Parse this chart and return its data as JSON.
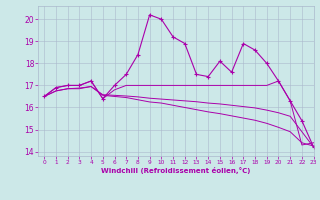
{
  "x": [
    0,
    1,
    2,
    3,
    4,
    5,
    6,
    7,
    8,
    9,
    10,
    11,
    12,
    13,
    14,
    15,
    16,
    17,
    18,
    19,
    20,
    21,
    22,
    23
  ],
  "main_y": [
    16.5,
    16.9,
    17.0,
    17.0,
    17.2,
    16.4,
    17.0,
    17.5,
    18.4,
    20.2,
    20.0,
    19.2,
    18.9,
    17.5,
    17.4,
    18.1,
    17.6,
    18.9,
    18.6,
    18.0,
    17.2,
    16.3,
    15.4,
    14.2
  ],
  "line2_y": [
    16.5,
    16.9,
    17.0,
    17.0,
    17.2,
    16.4,
    16.8,
    17.0,
    17.0,
    17.0,
    17.0,
    17.0,
    17.0,
    17.0,
    17.0,
    17.0,
    17.0,
    17.0,
    17.0,
    17.0,
    17.2,
    16.3,
    14.3,
    14.4
  ],
  "line3_y": [
    16.5,
    16.75,
    16.85,
    16.85,
    16.95,
    16.55,
    16.5,
    16.45,
    16.35,
    16.25,
    16.2,
    16.1,
    16.0,
    15.9,
    15.8,
    15.72,
    15.62,
    15.52,
    15.42,
    15.28,
    15.1,
    14.9,
    14.4,
    14.25
  ],
  "line4_y": [
    16.5,
    16.75,
    16.85,
    16.88,
    16.95,
    16.58,
    16.55,
    16.52,
    16.48,
    16.42,
    16.38,
    16.34,
    16.3,
    16.26,
    16.2,
    16.16,
    16.1,
    16.04,
    15.98,
    15.88,
    15.76,
    15.6,
    14.9,
    14.2
  ],
  "line_color": "#aa00aa",
  "bg_color": "#cce8e8",
  "grid_color": "#aab8cc",
  "xlabel": "Windchill (Refroidissement éolien,°C)",
  "ylim": [
    13.8,
    20.6
  ],
  "xlim": [
    -0.5,
    23
  ],
  "yticks": [
    14,
    15,
    16,
    17,
    18,
    19,
    20
  ],
  "xticks": [
    0,
    1,
    2,
    3,
    4,
    5,
    6,
    7,
    8,
    9,
    10,
    11,
    12,
    13,
    14,
    15,
    16,
    17,
    18,
    19,
    20,
    21,
    22,
    23
  ]
}
